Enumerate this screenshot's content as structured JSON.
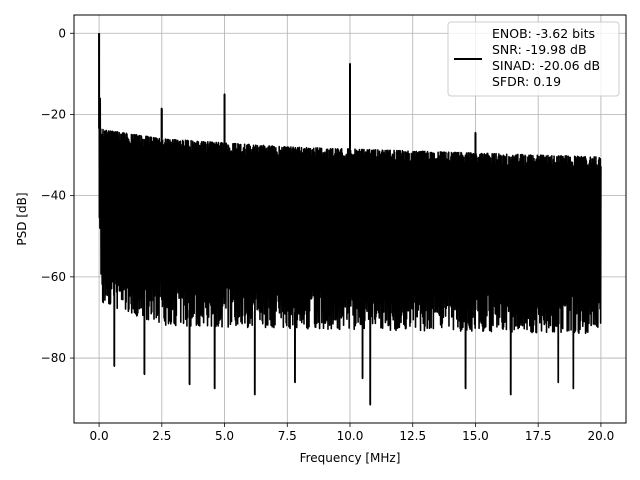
{
  "chart_data": {
    "type": "line",
    "title": "",
    "xlabel": "Frequency [MHz]",
    "ylabel": "PSD [dB]",
    "xlim": [
      -1.0,
      21.0
    ],
    "ylim": [
      -96.0,
      4.5
    ],
    "xticks": [
      0.0,
      2.5,
      5.0,
      7.5,
      10.0,
      12.5,
      15.0,
      17.5,
      20.0
    ],
    "xtick_labels": [
      "0.0",
      "2.5",
      "5.0",
      "7.5",
      "10.0",
      "12.5",
      "15.0",
      "17.5",
      "20.0"
    ],
    "yticks": [
      0,
      -20,
      -40,
      -60,
      -80
    ],
    "ytick_labels": [
      "0",
      "−20",
      "−40",
      "−60",
      "−80"
    ],
    "grid": true,
    "legend_position": "top-right",
    "legend": {
      "lines": [
        "ENOB: -3.62 bits",
        "SNR: -19.98 dB",
        "SINAD: -20.06 dB",
        "SFDR: 0.19"
      ]
    },
    "series": [
      {
        "color": "#000000",
        "noise_floor_upper_db": [
          [
            0.0,
            -23.5
          ],
          [
            2.5,
            -26.0
          ],
          [
            5.0,
            -27.0
          ],
          [
            7.5,
            -28.0
          ],
          [
            10.0,
            -28.5
          ],
          [
            12.5,
            -29.0
          ],
          [
            15.0,
            -29.5
          ],
          [
            17.5,
            -30.0
          ],
          [
            20.0,
            -30.5
          ]
        ],
        "noise_floor_lower_db": [
          [
            0.0,
            -66.0
          ],
          [
            2.5,
            -72.0
          ],
          [
            10.0,
            -73.0
          ],
          [
            20.0,
            -74.0
          ]
        ],
        "spurs": [
          {
            "x": 0.0,
            "y": 0.0
          },
          {
            "x": 2.5,
            "y": -18.5
          },
          {
            "x": 5.0,
            "y": -15.0
          },
          {
            "x": 10.0,
            "y": -7.5
          },
          {
            "x": 15.0,
            "y": -24.5
          }
        ],
        "minima": [
          {
            "x": 0.6,
            "y": -82.0
          },
          {
            "x": 1.8,
            "y": -84.0
          },
          {
            "x": 3.6,
            "y": -86.5
          },
          {
            "x": 4.6,
            "y": -87.5
          },
          {
            "x": 6.2,
            "y": -89.0
          },
          {
            "x": 7.8,
            "y": -86.0
          },
          {
            "x": 10.5,
            "y": -85.0
          },
          {
            "x": 10.8,
            "y": -91.5
          },
          {
            "x": 14.6,
            "y": -87.5
          },
          {
            "x": 16.4,
            "y": -89.0
          },
          {
            "x": 18.3,
            "y": -86.0
          },
          {
            "x": 18.9,
            "y": -87.5
          }
        ]
      }
    ]
  }
}
